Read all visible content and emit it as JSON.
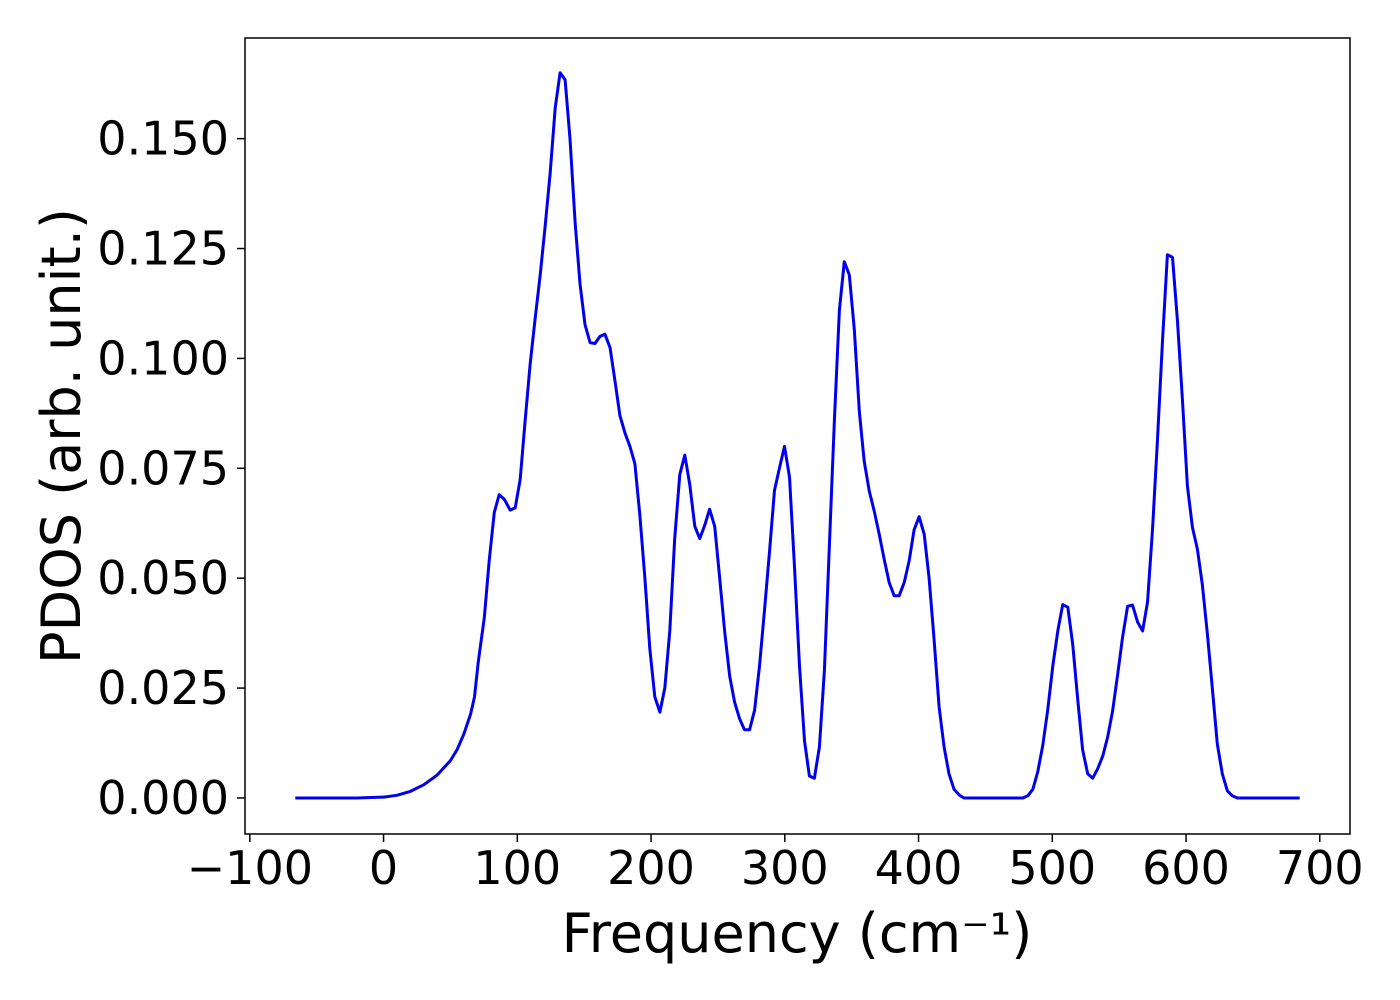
{
  "chart_data": {
    "type": "line",
    "xlabel": "Frequency (cm⁻¹)",
    "ylabel": "PDOS (arb. unit.)",
    "x": [
      -66,
      -20,
      0,
      10,
      20,
      30,
      40,
      50,
      55,
      60,
      65,
      68,
      70.8,
      75.3,
      79.0,
      82.8,
      86.5,
      90.2,
      94.7,
      98.4,
      102.2,
      105.9,
      109.6,
      113.3,
      117.1,
      120.8,
      124.5,
      128.3,
      132.0,
      135.7,
      139.4,
      143.2,
      146.9,
      150.6,
      154.4,
      158.1,
      161.8,
      165.5,
      169.3,
      173.0,
      176.7,
      180.5,
      184.2,
      187.9,
      191.6,
      195.4,
      199.1,
      202.8,
      206.6,
      210.3,
      214.0,
      217.7,
      221.5,
      225.2,
      228.9,
      232.7,
      236.4,
      240.1,
      243.8,
      247.6,
      251.3,
      255.0,
      258.8,
      262.5,
      266.2,
      269.9,
      273.7,
      277.4,
      281.1,
      284.9,
      288.6,
      292.3,
      296.0,
      299.8,
      303.5,
      307.2,
      311.0,
      314.7,
      318.4,
      322.1,
      325.9,
      329.6,
      333.3,
      337.1,
      340.8,
      344.5,
      348.2,
      352.0,
      355.7,
      359.4,
      363.2,
      366.9,
      370.6,
      374.3,
      378.1,
      381.8,
      385.5,
      389.3,
      393.0,
      396.7,
      400.4,
      404.2,
      407.9,
      411.6,
      415.4,
      419.1,
      422.8,
      426.5,
      430.3,
      434.0,
      460,
      478,
      481.7,
      485.5,
      489.2,
      492.9,
      496.6,
      500.4,
      504.1,
      507.8,
      511.6,
      515.3,
      519.0,
      522.7,
      526.5,
      530.2,
      533.9,
      537.7,
      541.4,
      545.1,
      548.8,
      552.6,
      556.3,
      560.0,
      563.8,
      567.5,
      571.2,
      574.9,
      578.7,
      582.4,
      586.1,
      589.9,
      593.6,
      597.3,
      601.0,
      604.8,
      608.5,
      612.2,
      616.0,
      619.7,
      623.4,
      627.1,
      630.9,
      634.6,
      638.3,
      660,
      685
    ],
    "series": [
      {
        "name": "PDOS",
        "color": "#0000ee",
        "values": [
          0,
          0,
          0.0002,
          0.0006,
          0.0015,
          0.003,
          0.0052,
          0.0085,
          0.011,
          0.0145,
          0.019,
          0.023,
          0.031,
          0.041,
          0.054,
          0.065,
          0.069,
          0.068,
          0.0655,
          0.066,
          0.0725,
          0.086,
          0.0986,
          0.109,
          0.119,
          0.13,
          0.142,
          0.157,
          0.165,
          0.1634,
          0.15,
          0.131,
          0.117,
          0.1077,
          0.1036,
          0.1034,
          0.105,
          0.1055,
          0.1025,
          0.095,
          0.087,
          0.083,
          0.08,
          0.076,
          0.0645,
          0.05,
          0.034,
          0.023,
          0.0195,
          0.025,
          0.038,
          0.059,
          0.0736,
          0.078,
          0.0714,
          0.0618,
          0.059,
          0.062,
          0.0657,
          0.0618,
          0.05,
          0.038,
          0.0277,
          0.0218,
          0.018,
          0.0155,
          0.0155,
          0.02,
          0.03,
          0.043,
          0.056,
          0.07,
          0.075,
          0.08,
          0.073,
          0.053,
          0.03,
          0.013,
          0.005,
          0.0045,
          0.0116,
          0.029,
          0.057,
          0.086,
          0.111,
          0.122,
          0.119,
          0.1066,
          0.088,
          0.0766,
          0.0698,
          0.0652,
          0.06,
          0.0543,
          0.049,
          0.046,
          0.046,
          0.049,
          0.054,
          0.061,
          0.064,
          0.06,
          0.05,
          0.036,
          0.0207,
          0.0116,
          0.0055,
          0.002,
          0.0007,
          0,
          0,
          0,
          0.0005,
          0.002,
          0.006,
          0.012,
          0.02,
          0.03,
          0.038,
          0.044,
          0.0434,
          0.035,
          0.0225,
          0.011,
          0.0055,
          0.0045,
          0.0066,
          0.0095,
          0.0139,
          0.0198,
          0.028,
          0.0366,
          0.0436,
          0.0439,
          0.04,
          0.038,
          0.0445,
          0.061,
          0.0816,
          0.104,
          0.1236,
          0.123,
          0.1084,
          0.0907,
          0.071,
          0.0616,
          0.0566,
          0.0486,
          0.0373,
          0.0248,
          0.0123,
          0.0055,
          0.0016,
          0.0005,
          0,
          0,
          0
        ]
      }
    ],
    "xlim": [
      -103.6,
      722.6
    ],
    "ylim": [
      -0.0082,
      0.1729
    ],
    "xticks": [
      {
        "value": -100,
        "label": "−100"
      },
      0,
      100,
      200,
      300,
      400,
      500,
      600,
      700
    ],
    "yticks": [
      {
        "value": 0,
        "label": "0.000"
      },
      {
        "value": 0.025,
        "label": "0.025"
      },
      {
        "value": 0.05,
        "label": "0.050"
      },
      {
        "value": 0.075,
        "label": "0.075"
      },
      {
        "value": 0.1,
        "label": "0.100"
      },
      {
        "value": 0.125,
        "label": "0.125"
      },
      {
        "value": 0.15,
        "label": "0.150"
      }
    ],
    "grid": false
  }
}
